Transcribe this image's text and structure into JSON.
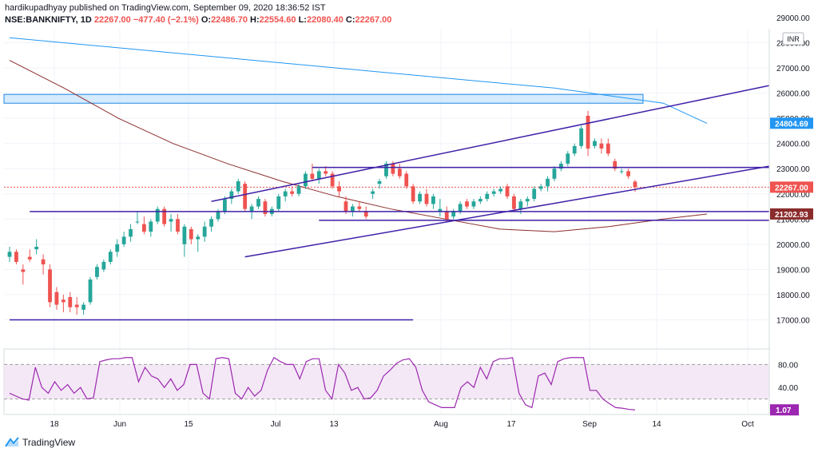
{
  "header": {
    "author": "hardikupadhyay",
    "published_text": "published on TradingView.com, September 09, 2020 18:36:52 IST",
    "symbol": "NSE:BANKNIFTY, 1D",
    "last": "22267.00",
    "change": "−477.40 (−2.1%)",
    "o": "22486.70",
    "h": "22554.60",
    "l": "22080.40",
    "c": "22267.00"
  },
  "currency_badge": "INR",
  "footer": {
    "brand": "TradingView"
  },
  "colors": {
    "up": "#26a69a",
    "down": "#ef5350",
    "trend": "#3f1fa8",
    "ma_blue": "#2196f3",
    "ma_brown": "#8b2c2c",
    "rsi": "#9c27b0",
    "rsi_band": "#f3e5f5"
  },
  "price_axis": {
    "top_label": "29000.00",
    "min": 16000,
    "max": 29000,
    "ticks": [
      "28000.00",
      "27000.00",
      "26000.00",
      "25000.00",
      "24000.00",
      "23000.00",
      "22000.00",
      "21000.00",
      "20000.00",
      "19000.00",
      "18000.00",
      "17000.00"
    ]
  },
  "price_badges": [
    {
      "label": "24804.69",
      "value": 24804.69,
      "color": "#2196f3"
    },
    {
      "label": "22267.00",
      "value": 22267.0,
      "color": "#ef5350"
    },
    {
      "label": "21202.93",
      "value": 21202.93,
      "color": "#8b2c2c"
    }
  ],
  "rsi_axis": {
    "ticks": [
      "80.00",
      "40.00"
    ],
    "current": "1.07"
  },
  "time_axis": [
    "18",
    "Jun",
    "15",
    "Jul",
    "13",
    "Aug",
    "17",
    "Sep",
    "14",
    "Oct"
  ],
  "chart_data": {
    "type": "candlestick",
    "symbol": "NSE:BANKNIFTY",
    "interval": "1D",
    "ylim": [
      16000,
      29000
    ],
    "candles": [
      {
        "o": 19500,
        "h": 19900,
        "l": 19300,
        "c": 19700
      },
      {
        "o": 19700,
        "h": 19800,
        "l": 19200,
        "c": 19300
      },
      {
        "o": 19000,
        "h": 19200,
        "l": 18400,
        "c": 18900
      },
      {
        "o": 19500,
        "h": 19800,
        "l": 19300,
        "c": 19400
      },
      {
        "o": 19800,
        "h": 20200,
        "l": 19600,
        "c": 19900
      },
      {
        "o": 19400,
        "h": 19600,
        "l": 18800,
        "c": 19200
      },
      {
        "o": 19000,
        "h": 19200,
        "l": 17500,
        "c": 17700
      },
      {
        "o": 18100,
        "h": 18300,
        "l": 17400,
        "c": 17600
      },
      {
        "o": 17800,
        "h": 18000,
        "l": 17300,
        "c": 17700
      },
      {
        "o": 17900,
        "h": 18100,
        "l": 17300,
        "c": 17500
      },
      {
        "o": 17600,
        "h": 17900,
        "l": 17200,
        "c": 17500
      },
      {
        "o": 17400,
        "h": 17700,
        "l": 17200,
        "c": 17600
      },
      {
        "o": 17700,
        "h": 18700,
        "l": 17600,
        "c": 18600
      },
      {
        "o": 18700,
        "h": 19200,
        "l": 18600,
        "c": 19100
      },
      {
        "o": 19000,
        "h": 19400,
        "l": 18900,
        "c": 19300
      },
      {
        "o": 19300,
        "h": 19800,
        "l": 19200,
        "c": 19700
      },
      {
        "o": 19700,
        "h": 20200,
        "l": 19500,
        "c": 20000
      },
      {
        "o": 20000,
        "h": 20500,
        "l": 19900,
        "c": 20300
      },
      {
        "o": 20300,
        "h": 20800,
        "l": 20100,
        "c": 20600
      },
      {
        "o": 20900,
        "h": 21300,
        "l": 20800,
        "c": 20900
      },
      {
        "o": 20800,
        "h": 21100,
        "l": 20400,
        "c": 20500
      },
      {
        "o": 20500,
        "h": 21000,
        "l": 20300,
        "c": 20900
      },
      {
        "o": 20900,
        "h": 21500,
        "l": 20800,
        "c": 21400
      },
      {
        "o": 21400,
        "h": 21500,
        "l": 20700,
        "c": 20800
      },
      {
        "o": 20900,
        "h": 21200,
        "l": 20500,
        "c": 21000
      },
      {
        "o": 21000,
        "h": 21200,
        "l": 20400,
        "c": 20500
      },
      {
        "o": 20000,
        "h": 20800,
        "l": 19500,
        "c": 20700
      },
      {
        "o": 20600,
        "h": 20700,
        "l": 20000,
        "c": 20200
      },
      {
        "o": 20200,
        "h": 20400,
        "l": 19700,
        "c": 20300
      },
      {
        "o": 20300,
        "h": 20900,
        "l": 20100,
        "c": 20700
      },
      {
        "o": 20700,
        "h": 21100,
        "l": 20500,
        "c": 21000
      },
      {
        "o": 21000,
        "h": 21400,
        "l": 20900,
        "c": 21300
      },
      {
        "o": 21300,
        "h": 21900,
        "l": 21200,
        "c": 21800
      },
      {
        "o": 21800,
        "h": 22200,
        "l": 21600,
        "c": 22100
      },
      {
        "o": 22100,
        "h": 22600,
        "l": 22000,
        "c": 22500
      },
      {
        "o": 22400,
        "h": 22500,
        "l": 21300,
        "c": 21400
      },
      {
        "o": 21300,
        "h": 21600,
        "l": 21000,
        "c": 21500
      },
      {
        "o": 21500,
        "h": 21900,
        "l": 21400,
        "c": 21800
      },
      {
        "o": 21700,
        "h": 21800,
        "l": 21100,
        "c": 21200
      },
      {
        "o": 21200,
        "h": 21500,
        "l": 21100,
        "c": 21400
      },
      {
        "o": 21400,
        "h": 22000,
        "l": 21300,
        "c": 21900
      },
      {
        "o": 21900,
        "h": 22200,
        "l": 21700,
        "c": 22100
      },
      {
        "o": 22100,
        "h": 22300,
        "l": 21900,
        "c": 22000
      },
      {
        "o": 22000,
        "h": 22400,
        "l": 21900,
        "c": 22300
      },
      {
        "o": 22300,
        "h": 22900,
        "l": 22200,
        "c": 22800
      },
      {
        "o": 22800,
        "h": 23200,
        "l": 22500,
        "c": 22600
      },
      {
        "o": 22600,
        "h": 23000,
        "l": 22400,
        "c": 22900
      },
      {
        "o": 22900,
        "h": 23100,
        "l": 22700,
        "c": 22800
      },
      {
        "o": 22800,
        "h": 22900,
        "l": 22200,
        "c": 22300
      },
      {
        "o": 22300,
        "h": 22500,
        "l": 21900,
        "c": 22100
      },
      {
        "o": 21700,
        "h": 21900,
        "l": 21200,
        "c": 21300
      },
      {
        "o": 21300,
        "h": 21600,
        "l": 21100,
        "c": 21500
      },
      {
        "o": 21500,
        "h": 21700,
        "l": 21300,
        "c": 21400
      },
      {
        "o": 21300,
        "h": 21500,
        "l": 21000,
        "c": 21100
      },
      {
        "o": 22000,
        "h": 22200,
        "l": 21800,
        "c": 22100
      },
      {
        "o": 22400,
        "h": 22600,
        "l": 22200,
        "c": 22500
      },
      {
        "o": 22700,
        "h": 23300,
        "l": 22600,
        "c": 23200
      },
      {
        "o": 23200,
        "h": 23300,
        "l": 22700,
        "c": 22800
      },
      {
        "o": 23000,
        "h": 23200,
        "l": 22600,
        "c": 22700
      },
      {
        "o": 22800,
        "h": 22900,
        "l": 22200,
        "c": 22300
      },
      {
        "o": 22300,
        "h": 22400,
        "l": 21600,
        "c": 21700
      },
      {
        "o": 21700,
        "h": 22100,
        "l": 21600,
        "c": 22000
      },
      {
        "o": 22000,
        "h": 22200,
        "l": 21500,
        "c": 21600
      },
      {
        "o": 21600,
        "h": 22000,
        "l": 21400,
        "c": 21900
      },
      {
        "o": 21300,
        "h": 21800,
        "l": 21100,
        "c": 21400
      },
      {
        "o": 21300,
        "h": 21500,
        "l": 20900,
        "c": 21000
      },
      {
        "o": 21100,
        "h": 21400,
        "l": 21000,
        "c": 21300
      },
      {
        "o": 21300,
        "h": 21700,
        "l": 21200,
        "c": 21600
      },
      {
        "o": 21700,
        "h": 21800,
        "l": 21400,
        "c": 21500
      },
      {
        "o": 21500,
        "h": 21800,
        "l": 21400,
        "c": 21700
      },
      {
        "o": 21700,
        "h": 21900,
        "l": 21600,
        "c": 21800
      },
      {
        "o": 21800,
        "h": 22100,
        "l": 21700,
        "c": 22000
      },
      {
        "o": 22000,
        "h": 22200,
        "l": 21900,
        "c": 22100
      },
      {
        "o": 22100,
        "h": 22300,
        "l": 22000,
        "c": 22200
      },
      {
        "o": 22300,
        "h": 22400,
        "l": 21800,
        "c": 21900
      },
      {
        "o": 21900,
        "h": 22000,
        "l": 21300,
        "c": 21400
      },
      {
        "o": 21400,
        "h": 21800,
        "l": 21200,
        "c": 21700
      },
      {
        "o": 21700,
        "h": 21900,
        "l": 21500,
        "c": 21800
      },
      {
        "o": 21800,
        "h": 22300,
        "l": 21700,
        "c": 22200
      },
      {
        "o": 22200,
        "h": 22400,
        "l": 22100,
        "c": 22300
      },
      {
        "o": 22300,
        "h": 22700,
        "l": 22100,
        "c": 22600
      },
      {
        "o": 22600,
        "h": 23100,
        "l": 22500,
        "c": 23000
      },
      {
        "o": 23000,
        "h": 23300,
        "l": 22900,
        "c": 23200
      },
      {
        "o": 23200,
        "h": 23700,
        "l": 23100,
        "c": 23600
      },
      {
        "o": 23600,
        "h": 24000,
        "l": 23500,
        "c": 23900
      },
      {
        "o": 23900,
        "h": 24700,
        "l": 23800,
        "c": 24600
      },
      {
        "o": 25100,
        "h": 25300,
        "l": 23500,
        "c": 23800
      },
      {
        "o": 23900,
        "h": 24200,
        "l": 23800,
        "c": 24100
      },
      {
        "o": 24000,
        "h": 24200,
        "l": 23600,
        "c": 23800
      },
      {
        "o": 24000,
        "h": 24200,
        "l": 23500,
        "c": 23600
      },
      {
        "o": 23300,
        "h": 23400,
        "l": 22900,
        "c": 23000
      },
      {
        "o": 22900,
        "h": 23000,
        "l": 22800,
        "c": 22900
      },
      {
        "o": 22900,
        "h": 23000,
        "l": 22600,
        "c": 22700
      },
      {
        "o": 22487,
        "h": 22555,
        "l": 22080,
        "c": 22267
      }
    ],
    "moving_average_1": [
      {
        "day": 0,
        "price": 28200
      },
      {
        "day": 20,
        "price": 27800
      },
      {
        "day": 40,
        "price": 27400
      },
      {
        "day": 60,
        "price": 27000
      },
      {
        "day": 80,
        "price": 26600
      },
      {
        "day": 100,
        "price": 26200
      },
      {
        "day": 120,
        "price": 25600
      },
      {
        "day": 128,
        "price": 24800
      }
    ],
    "moving_average_2": [
      {
        "day": 0,
        "price": 27300
      },
      {
        "day": 10,
        "price": 26200
      },
      {
        "day": 20,
        "price": 25000
      },
      {
        "day": 30,
        "price": 24000
      },
      {
        "day": 40,
        "price": 23200
      },
      {
        "day": 50,
        "price": 22500
      },
      {
        "day": 60,
        "price": 21900
      },
      {
        "day": 70,
        "price": 21400
      },
      {
        "day": 80,
        "price": 21000
      },
      {
        "day": 90,
        "price": 20600
      },
      {
        "day": 100,
        "price": 20500
      },
      {
        "day": 110,
        "price": 20700
      },
      {
        "day": 120,
        "price": 21000
      },
      {
        "day": 128,
        "price": 21200
      }
    ],
    "resistance_zone": {
      "from": 25600,
      "to": 25950
    },
    "trend_lines": [
      {
        "x1": 30,
        "y1": 21700,
        "x2": 143,
        "y2": 26300
      },
      {
        "x1": 35,
        "y1": 19500,
        "x2": 155,
        "y2": 23100
      },
      {
        "x1": 45,
        "y1": 23050,
        "x2": 134,
        "y2": 23050
      },
      {
        "x1": 3,
        "y1": 21300,
        "x2": 130,
        "y2": 21300
      },
      {
        "x1": 46,
        "y1": 20950,
        "x2": 136,
        "y2": 20950
      },
      {
        "x1": 0,
        "y1": 17000,
        "x2": 60,
        "y2": 17000
      }
    ],
    "rsi": {
      "levels": [
        80,
        20
      ],
      "values": [
        30,
        25,
        20,
        18,
        75,
        40,
        30,
        50,
        35,
        45,
        30,
        40,
        20,
        22,
        85,
        88,
        90,
        90,
        92,
        92,
        50,
        75,
        60,
        55,
        40,
        55,
        35,
        45,
        80,
        80,
        30,
        20,
        90,
        92,
        90,
        30,
        20,
        40,
        25,
        35,
        70,
        92,
        85,
        80,
        80,
        55,
        85,
        90,
        90,
        35,
        20,
        80,
        65,
        35,
        40,
        20,
        22,
        35,
        60,
        70,
        82,
        88,
        90,
        75,
        35,
        15,
        10,
        5,
        5,
        5,
        40,
        50,
        40,
        75,
        55,
        85,
        90,
        90,
        92,
        30,
        10,
        5,
        60,
        65,
        45,
        85,
        90,
        92,
        92,
        92,
        35,
        35,
        20,
        12,
        5,
        4,
        2,
        1.07
      ]
    }
  }
}
